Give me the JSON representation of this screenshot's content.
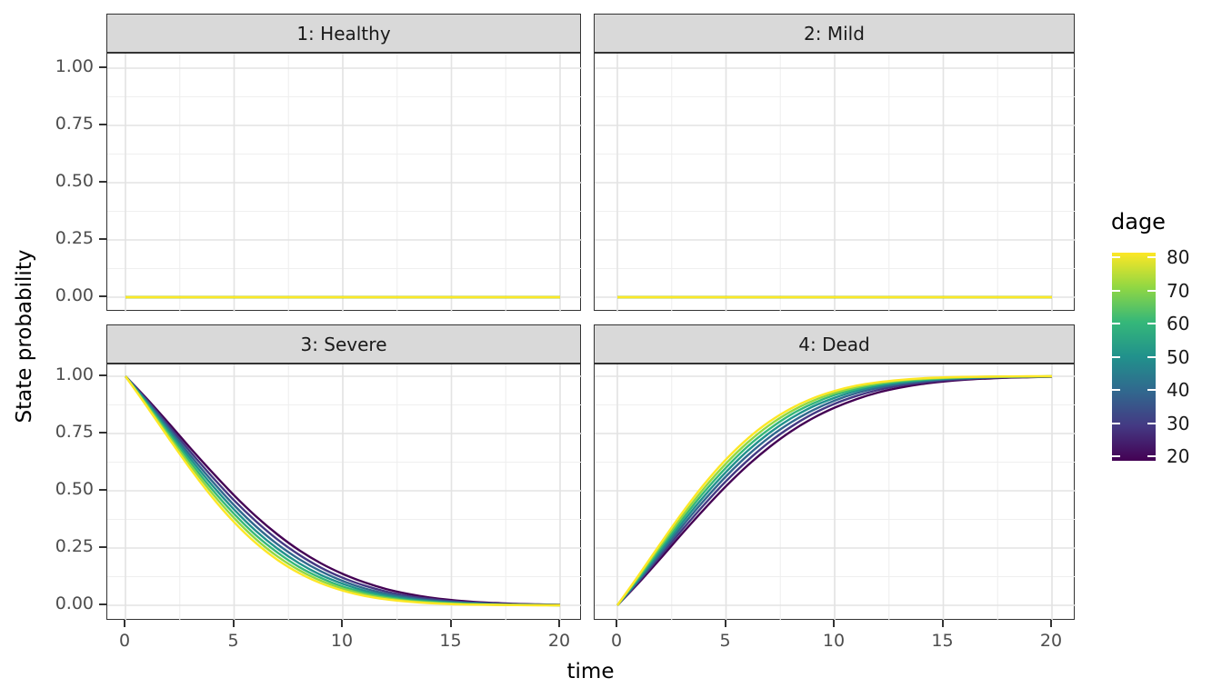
{
  "figure": {
    "xlabel": "time",
    "ylabel": "State probability"
  },
  "facets": [
    {
      "id": "healthy",
      "label": "1: Healthy",
      "source": "zeros"
    },
    {
      "id": "mild",
      "label": "2: Mild",
      "source": "zeros"
    },
    {
      "id": "severe",
      "label": "3: Severe",
      "source": "severe"
    },
    {
      "id": "dead",
      "label": "4: Dead",
      "source": "complement_severe"
    }
  ],
  "axes": {
    "x_tick_labels": [
      "0",
      "5",
      "10",
      "15",
      "20"
    ],
    "x_tick_values": [
      0,
      5,
      10,
      15,
      20
    ],
    "x_minor_values": [
      2.5,
      7.5,
      12.5,
      17.5
    ],
    "y_tick_labels": [
      "0.00",
      "0.25",
      "0.50",
      "0.75",
      "1.00"
    ],
    "y_tick_values": [
      0,
      0.25,
      0.5,
      0.75,
      1
    ],
    "y_minor_values": [
      0.125,
      0.375,
      0.625,
      0.875
    ]
  },
  "legend": {
    "title": "dage",
    "labels": [
      "80",
      "70",
      "60",
      "50",
      "40",
      "30",
      "20"
    ],
    "values": [
      80,
      70,
      60,
      50,
      40,
      30,
      20
    ],
    "min": 20,
    "max": 80
  },
  "style": {
    "strip_bg": "#d9d9d9",
    "panel_border": "#333333",
    "grid_major": "#e3e3e3",
    "grid_minor": "#efefef",
    "tick_mark": "#333333",
    "tick_label": "#4d4d4d",
    "text": "#1a1a1a",
    "line_width": 2.4
  },
  "chart_data": {
    "type": "line",
    "title": "",
    "xlabel": "time",
    "ylabel": "State probability",
    "xlim": [
      0,
      20
    ],
    "ylim": [
      0,
      1
    ],
    "grid": true,
    "facet_labels": [
      "1: Healthy",
      "2: Mild",
      "3: Severe",
      "4: Dead"
    ],
    "legend": {
      "title": "dage",
      "min": 20,
      "max": 80,
      "position": "right",
      "palette": "viridis"
    },
    "t": [
      0,
      1,
      2,
      3,
      4,
      5,
      6,
      7,
      8,
      9,
      10,
      11,
      12,
      13,
      14,
      15,
      16,
      17,
      18,
      19,
      20
    ],
    "dage": [
      20,
      30,
      40,
      50,
      60,
      70,
      80
    ],
    "series_colors": {
      "20": "#440154",
      "30": "#443983",
      "40": "#31688e",
      "50": "#21918c",
      "60": "#35b779",
      "70": "#90d743",
      "80": "#fde725"
    },
    "healthy_prob_constant": 0,
    "mild_prob_constant": 0,
    "dead_prob_rule": "1 - severe_prob",
    "severe_prob": {
      "20": [
        1,
        0.9,
        0.794,
        0.685,
        0.58,
        0.48,
        0.389,
        0.309,
        0.24,
        0.183,
        0.137,
        0.1,
        0.071,
        0.05,
        0.034,
        0.023,
        0.015,
        0.01,
        0.006,
        0.004,
        0.002
      ],
      "30": [
        1,
        0.894,
        0.782,
        0.669,
        0.56,
        0.458,
        0.367,
        0.287,
        0.22,
        0.164,
        0.12,
        0.086,
        0.06,
        0.041,
        0.028,
        0.018,
        0.012,
        0.007,
        0.004,
        0.003,
        0.002
      ],
      "40": [
        1,
        0.889,
        0.771,
        0.653,
        0.541,
        0.437,
        0.345,
        0.266,
        0.201,
        0.148,
        0.106,
        0.074,
        0.051,
        0.034,
        0.022,
        0.014,
        0.009,
        0.005,
        0.003,
        0.002,
        0.001
      ],
      "50": [
        1,
        0.883,
        0.76,
        0.638,
        0.523,
        0.418,
        0.325,
        0.247,
        0.183,
        0.132,
        0.094,
        0.064,
        0.043,
        0.028,
        0.018,
        0.011,
        0.007,
        0.004,
        0.002,
        0.001,
        0.001
      ],
      "60": [
        1,
        0.877,
        0.749,
        0.623,
        0.505,
        0.399,
        0.306,
        0.23,
        0.167,
        0.119,
        0.082,
        0.056,
        0.036,
        0.023,
        0.015,
        0.009,
        0.005,
        0.003,
        0.002,
        0.001,
        0.0
      ],
      "70": [
        1,
        0.871,
        0.738,
        0.609,
        0.488,
        0.381,
        0.289,
        0.213,
        0.153,
        0.107,
        0.073,
        0.048,
        0.031,
        0.019,
        0.012,
        0.007,
        0.004,
        0.002,
        0.001,
        0.001,
        0.0
      ],
      "80": [
        1,
        0.866,
        0.728,
        0.594,
        0.471,
        0.363,
        0.272,
        0.198,
        0.14,
        0.096,
        0.064,
        0.041,
        0.026,
        0.016,
        0.009,
        0.005,
        0.003,
        0.002,
        0.001,
        0.0,
        0.0
      ]
    }
  }
}
